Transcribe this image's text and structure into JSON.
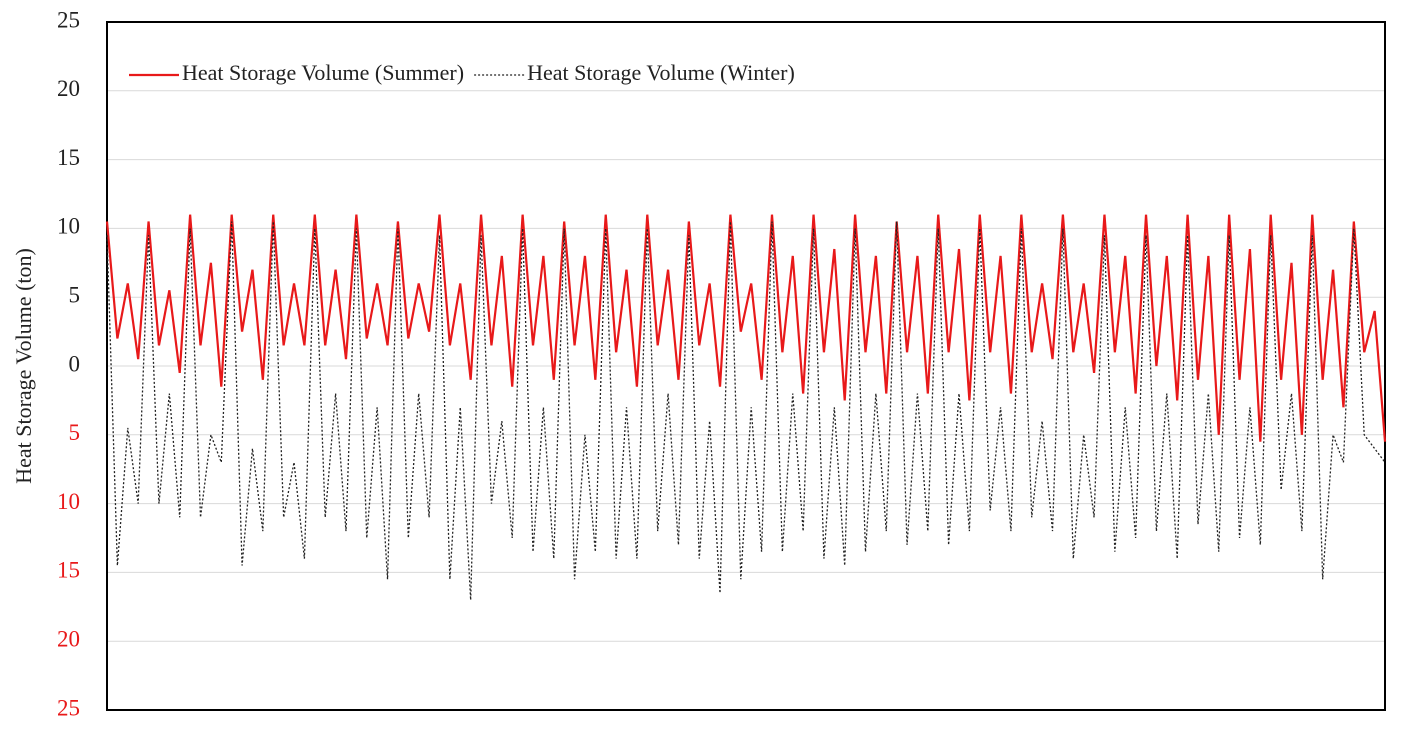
{
  "chart_data": {
    "type": "line",
    "y_label": "Heat Storage Volume (ton)",
    "ylim": [
      -25,
      25
    ],
    "yticks": [
      {
        "value": -25,
        "label": "25"
      },
      {
        "value": -20,
        "label": "20"
      },
      {
        "value": -15,
        "label": "15"
      },
      {
        "value": -10,
        "label": "10"
      },
      {
        "value": -5,
        "label": "5"
      },
      0,
      5,
      10,
      15,
      20,
      25
    ],
    "negative_tick_color": "#e8191a",
    "grid": true,
    "legend": "top-left",
    "series": [
      {
        "name": "Heat Storage Volume (Summer)",
        "color": "#e8191a",
        "dash": "none",
        "values": [
          10.5,
          2,
          6,
          0.5,
          10.5,
          1.5,
          5.5,
          -0.5,
          11,
          1.5,
          7.5,
          -1.5,
          11,
          2.5,
          7,
          -1,
          11,
          1.5,
          6,
          1.5,
          11,
          1.5,
          7,
          0.5,
          11,
          2,
          6,
          1.5,
          10.5,
          2,
          6,
          2.5,
          11,
          1.5,
          6,
          -1,
          11,
          1.5,
          8,
          -1.5,
          11,
          1.5,
          8,
          -1,
          10.5,
          1.5,
          8,
          -1,
          11,
          1,
          7,
          -1.5,
          11,
          1.5,
          7,
          -1,
          10.5,
          1.5,
          6,
          -1.5,
          11,
          2.5,
          6,
          -1,
          11,
          1,
          8,
          -2,
          11,
          1,
          8.5,
          -2.5,
          11,
          1,
          8,
          -2,
          10.5,
          1,
          8,
          -2,
          11,
          1,
          8.5,
          -2.5,
          11,
          1,
          8,
          -2,
          11,
          1,
          6,
          0.5,
          11,
          1,
          6,
          -0.5,
          11,
          1,
          8,
          -2,
          11,
          0,
          8,
          -2.5,
          11,
          -1,
          8,
          -5,
          11,
          -1,
          8.5,
          -5.5,
          11,
          -1,
          7.5,
          -5,
          11,
          -1,
          7,
          -3,
          10.5,
          1,
          4,
          -5.5
        ]
      },
      {
        "name": "Heat Storage Volume (Winter)",
        "color": "#222222",
        "dash": "dotted",
        "values": [
          9.5,
          -14.5,
          -4.5,
          -10,
          9.5,
          -10,
          -2,
          -11,
          10,
          -11,
          -5,
          -7,
          10.5,
          -14.5,
          -6,
          -12,
          10.5,
          -11,
          -7,
          -14,
          10,
          -11,
          -2,
          -12,
          10,
          -12.5,
          -3,
          -15.5,
          10,
          -12.5,
          -2,
          -11,
          9.5,
          -15.5,
          -3,
          -17,
          9.5,
          -10,
          -4,
          -12.5,
          10,
          -13.5,
          -3,
          -14,
          10,
          -15.5,
          -5,
          -13.5,
          10,
          -14,
          -3,
          -14,
          10,
          -12,
          -2,
          -13,
          9.5,
          -14,
          -4,
          -16.5,
          10.5,
          -15.5,
          -3,
          -13.5,
          10.5,
          -13.5,
          -2,
          -12,
          10,
          -14,
          -3,
          -14.5,
          10,
          -13.5,
          -2,
          -12,
          10.5,
          -13,
          -2,
          -12,
          10,
          -13,
          -2,
          -12,
          10,
          -10.5,
          -3,
          -12,
          10,
          -11,
          -4,
          -12,
          10,
          -14,
          -5,
          -11,
          9.5,
          -13.5,
          -3,
          -12.5,
          9.5,
          -12,
          -2,
          -14,
          9.5,
          -11.5,
          -2,
          -13.5,
          9.5,
          -12.5,
          -3,
          -13,
          9.5,
          -9,
          -2,
          -12,
          9.5,
          -15.5,
          -5,
          -7,
          10,
          -5,
          -6,
          -7
        ]
      }
    ]
  }
}
